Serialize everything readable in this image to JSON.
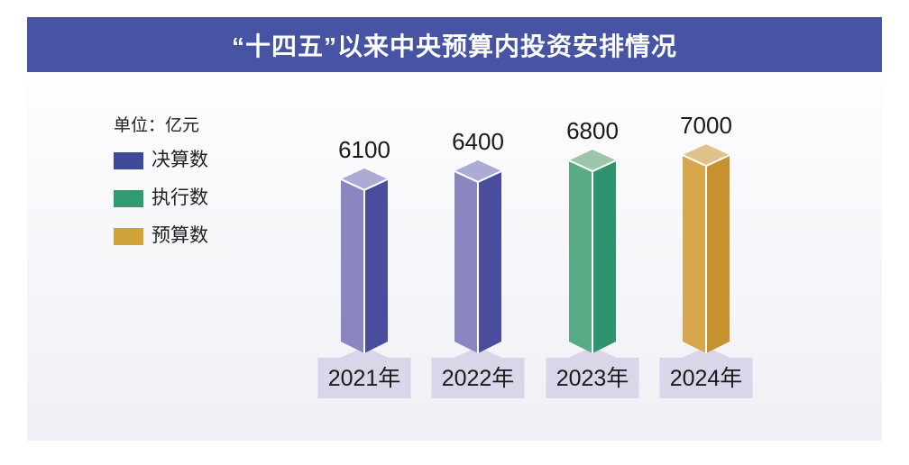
{
  "header": {
    "title": "“十四五”以来中央预算内投资安排情况"
  },
  "legend": {
    "unit_label": "单位：亿元",
    "items": [
      {
        "label": "决算数",
        "color": "#3E4A99"
      },
      {
        "label": "执行数",
        "color": "#2E9B72"
      },
      {
        "label": "预算数",
        "color": "#D2A23B"
      }
    ]
  },
  "chart_data": {
    "type": "bar",
    "title": "“十四五”以来中央预算内投资安排情况",
    "unit": "亿元",
    "categories": [
      "2021年",
      "2022年",
      "2023年",
      "2024年"
    ],
    "values": [
      6100,
      6400,
      6800,
      7000
    ],
    "bar_series": [
      "决算数",
      "决算数",
      "执行数",
      "预算数"
    ],
    "bar_colors": {
      "决算数": {
        "left": "#8A87C0",
        "right": "#4A4C9E",
        "top": "#ACABD3"
      },
      "执行数": {
        "left": "#5AAA85",
        "right": "#2E9470",
        "top": "#9CC5AA"
      },
      "预算数": {
        "left": "#D8A74D",
        "right": "#C6922F",
        "top": "#DFC289"
      }
    },
    "style": {
      "bar_type": "3d-column",
      "edge_color": "#FFFFFF",
      "value_label_color": "#1A1A1A",
      "category_plate_color": "#D8D6E8",
      "category_text_color": "#1A1A1A",
      "title_bar_color": "#4654A3"
    },
    "ylim": [
      0,
      7400
    ],
    "grid": false,
    "legend_position": "top-left"
  }
}
